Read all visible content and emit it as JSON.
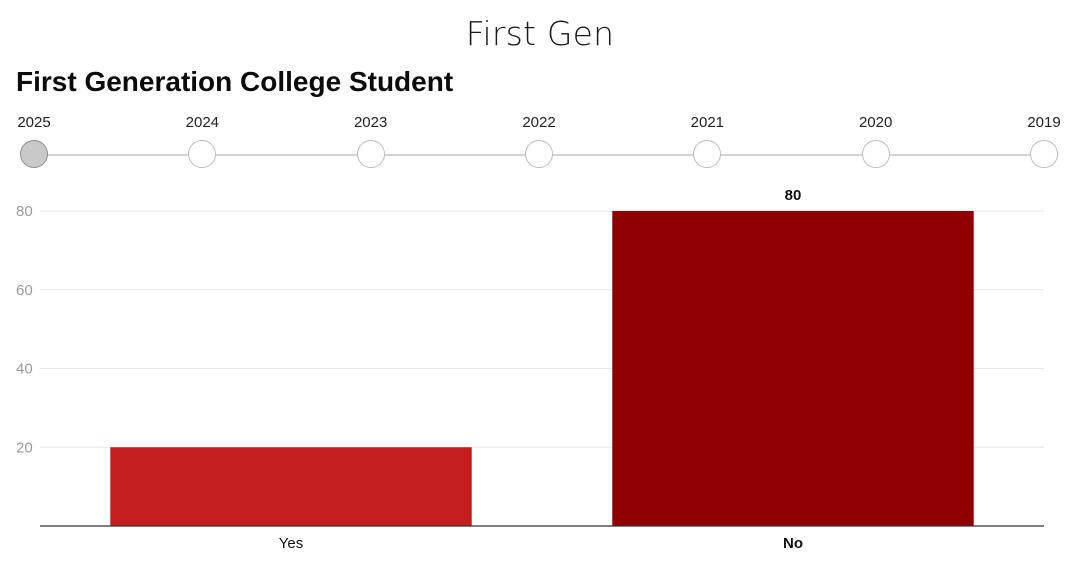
{
  "page": {
    "heading": "First Gen"
  },
  "timeline": {
    "years": [
      "2025",
      "2024",
      "2023",
      "2022",
      "2021",
      "2020",
      "2019"
    ],
    "active_year": "2025"
  },
  "chart_data": {
    "type": "bar",
    "title": "First Generation College Student",
    "categories": [
      "Yes",
      "No"
    ],
    "values": [
      20,
      80
    ],
    "colors": [
      "#c41e1e",
      "#900000"
    ],
    "highlighted_category": "No",
    "data_labels": [
      null,
      "80"
    ],
    "yticks": [
      20,
      40,
      60,
      80
    ],
    "ylim": [
      0,
      80
    ],
    "grid": true,
    "xlabel": "",
    "ylabel": ""
  }
}
